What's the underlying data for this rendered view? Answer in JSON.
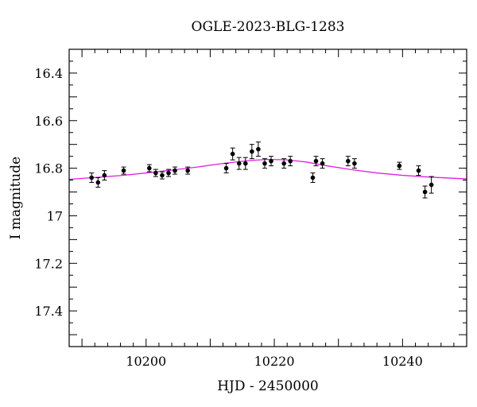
{
  "chart_data": {
    "type": "scatter",
    "title": "OGLE-2023-BLG-1283",
    "xlabel": "HJD - 2450000",
    "ylabel": "I magnitude",
    "xlim": [
      10188,
      10250
    ],
    "ylim": [
      17.55,
      16.3
    ],
    "y_inverted": true,
    "grid": false,
    "x_ticks": [
      10200,
      10220,
      10240
    ],
    "x_tick_labels": [
      "10200",
      "10220",
      "10240"
    ],
    "y_ticks": [
      16.4,
      16.6,
      16.8,
      17.0,
      17.2,
      17.4
    ],
    "y_tick_labels": [
      "16.4",
      "16.6",
      "16.8",
      "17",
      "17.2",
      "17.4"
    ],
    "series": [
      {
        "kind": "points_with_errorbars",
        "color": "#000000",
        "points": [
          {
            "x": 10191.5,
            "y": 16.84,
            "err": 0.02
          },
          {
            "x": 10192.5,
            "y": 16.86,
            "err": 0.02
          },
          {
            "x": 10193.5,
            "y": 16.83,
            "err": 0.02
          },
          {
            "x": 10196.5,
            "y": 16.81,
            "err": 0.015
          },
          {
            "x": 10200.5,
            "y": 16.8,
            "err": 0.015
          },
          {
            "x": 10201.5,
            "y": 16.82,
            "err": 0.015
          },
          {
            "x": 10202.5,
            "y": 16.83,
            "err": 0.015
          },
          {
            "x": 10203.5,
            "y": 16.82,
            "err": 0.015
          },
          {
            "x": 10204.5,
            "y": 16.81,
            "err": 0.015
          },
          {
            "x": 10206.5,
            "y": 16.81,
            "err": 0.015
          },
          {
            "x": 10212.5,
            "y": 16.8,
            "err": 0.02
          },
          {
            "x": 10213.5,
            "y": 16.74,
            "err": 0.025
          },
          {
            "x": 10214.5,
            "y": 16.78,
            "err": 0.025
          },
          {
            "x": 10215.5,
            "y": 16.78,
            "err": 0.025
          },
          {
            "x": 10216.5,
            "y": 16.73,
            "err": 0.03
          },
          {
            "x": 10217.5,
            "y": 16.72,
            "err": 0.03
          },
          {
            "x": 10218.5,
            "y": 16.78,
            "err": 0.02
          },
          {
            "x": 10219.5,
            "y": 16.77,
            "err": 0.02
          },
          {
            "x": 10221.5,
            "y": 16.78,
            "err": 0.02
          },
          {
            "x": 10222.5,
            "y": 16.77,
            "err": 0.02
          },
          {
            "x": 10226.0,
            "y": 16.84,
            "err": 0.02
          },
          {
            "x": 10226.5,
            "y": 16.77,
            "err": 0.02
          },
          {
            "x": 10227.5,
            "y": 16.78,
            "err": 0.02
          },
          {
            "x": 10231.5,
            "y": 16.77,
            "err": 0.02
          },
          {
            "x": 10232.5,
            "y": 16.78,
            "err": 0.02
          },
          {
            "x": 10239.5,
            "y": 16.79,
            "err": 0.015
          },
          {
            "x": 10242.5,
            "y": 16.81,
            "err": 0.02
          },
          {
            "x": 10243.5,
            "y": 16.9,
            "err": 0.025
          },
          {
            "x": 10244.5,
            "y": 16.87,
            "err": 0.035
          }
        ]
      },
      {
        "kind": "model_line",
        "color": "#e020e0",
        "x": [
          10188,
          10192,
          10196,
          10200,
          10204,
          10208,
          10212,
          10216,
          10219,
          10222,
          10225,
          10228,
          10232,
          10236,
          10240,
          10244,
          10250
        ],
        "y": [
          16.847,
          16.839,
          16.831,
          16.82,
          16.808,
          16.795,
          16.78,
          16.768,
          16.763,
          16.765,
          16.774,
          16.789,
          16.806,
          16.82,
          16.83,
          16.837,
          16.845
        ]
      }
    ]
  }
}
